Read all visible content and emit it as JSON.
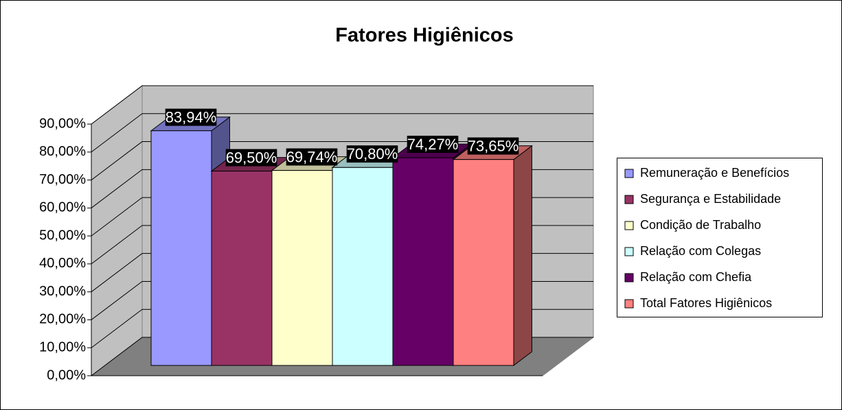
{
  "chart_data": {
    "type": "bar3d",
    "title": "Fatores Higiênicos",
    "series": [
      {
        "name": "Remuneração e Benefícios",
        "color": "#9999ff",
        "values": [
          83.94
        ],
        "value_labels": [
          "83,94%"
        ]
      },
      {
        "name": "Segurança e Estabilidade",
        "color": "#993366",
        "values": [
          69.5
        ],
        "value_labels": [
          "69,50%"
        ]
      },
      {
        "name": "Condição de Trabalho",
        "color": "#ffffcc",
        "values": [
          69.74
        ],
        "value_labels": [
          "69,74%"
        ]
      },
      {
        "name": "Relação com Colegas",
        "color": "#ccffff",
        "values": [
          70.8
        ],
        "value_labels": [
          "70,80%"
        ]
      },
      {
        "name": "Relação com Chefia",
        "color": "#660066",
        "values": [
          74.27
        ],
        "value_labels": [
          "74,27%"
        ]
      },
      {
        "name": "Total Fatores Higiênicos",
        "color": "#ff8080",
        "values": [
          73.65
        ],
        "value_labels": [
          "73,65%"
        ]
      }
    ],
    "ylim": [
      0,
      90
    ],
    "yticks": [
      {
        "value": 0,
        "label": "0,00%"
      },
      {
        "value": 10,
        "label": "10,00%"
      },
      {
        "value": 20,
        "label": "20,00%"
      },
      {
        "value": 30,
        "label": "30,00%"
      },
      {
        "value": 40,
        "label": "40,00%"
      },
      {
        "value": 50,
        "label": "50,00%"
      },
      {
        "value": 60,
        "label": "60,00%"
      },
      {
        "value": 70,
        "label": "70,00%"
      },
      {
        "value": 80,
        "label": "80,00%"
      },
      {
        "value": 90,
        "label": "90,00%"
      }
    ],
    "grid": true,
    "legend": "right"
  }
}
